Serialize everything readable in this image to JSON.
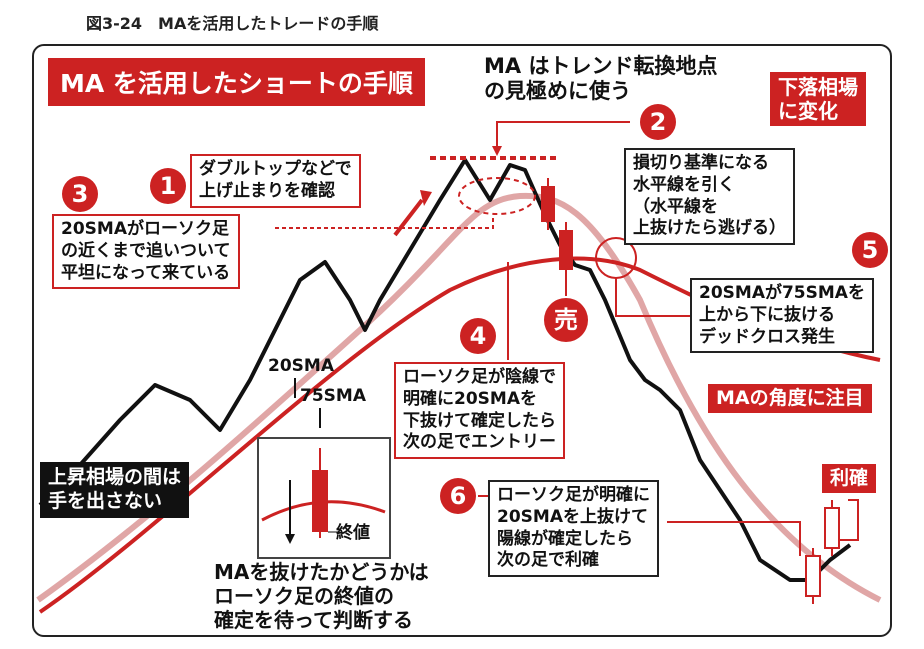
{
  "caption": "図3-24　MAを活用したトレードの手順",
  "title": "MA を活用したショートの手順",
  "subtitle": [
    "MA はトレンド転換地点",
    "の見極めに使う"
  ],
  "trend_change": [
    "下落相場",
    "に変化"
  ],
  "rise_warning": [
    "上昇相場の間は",
    "手を出さない"
  ],
  "ma_angle": "MAの角度に注目",
  "profit_take": "利確",
  "sell": "売",
  "closing_price": "終値",
  "ma20": "20SMA",
  "ma75": "75SMA",
  "steps": [
    {
      "num": "1",
      "lines": [
        "ダブルトップなどで",
        "上げ止まりを確認"
      ]
    },
    {
      "num": "2",
      "lines": [
        "損切り基準になる",
        "水平線を引く",
        "（水平線を",
        "上抜けたら逃げる）"
      ]
    },
    {
      "num": "3",
      "lines": [
        "20SMAがローソク足",
        "の近くまで追いついて",
        "平坦になって来ている"
      ]
    },
    {
      "num": "4",
      "lines": [
        "ローソク足が陰線で",
        "明確に20SMAを",
        "下抜けて確定したら",
        "次の足でエントリー"
      ]
    },
    {
      "num": "5",
      "lines": [
        "20SMAが75SMAを",
        "上から下に抜ける",
        "デッドクロス発生"
      ]
    },
    {
      "num": "6",
      "lines": [
        "ローソク足が明確に",
        "20SMAを上抜けて",
        "陽線が確定したら",
        "次の足で利確"
      ]
    }
  ],
  "bottom_note": [
    "MAを抜けたかどうかは",
    "ローソク足の終値の",
    "確定を待って判断する"
  ],
  "colors": {
    "accent": "#cc2222",
    "ma20_line": "#e0a6a6",
    "ma75_line": "#cc2222",
    "price_line": "#111111"
  }
}
